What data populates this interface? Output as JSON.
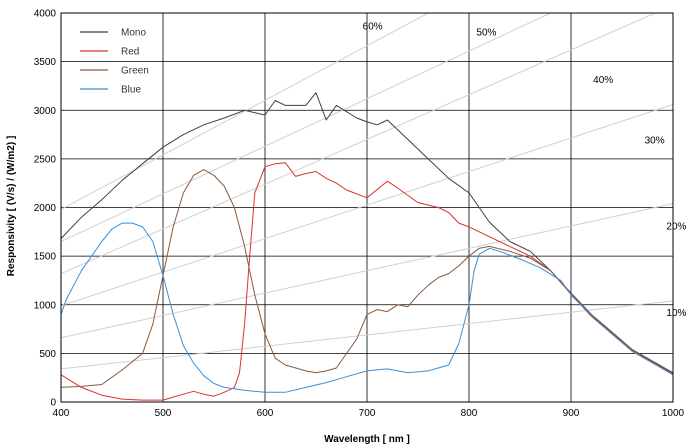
{
  "chart_data": {
    "type": "line",
    "title": "",
    "xlabel": "Wavelength  [ nm ]",
    "ylabel": "Responsivity  [ (V/s) / (W/m2) ]",
    "xlim": [
      400,
      1000
    ],
    "ylim": [
      0,
      4000
    ],
    "x_ticks": [
      "400",
      "500",
      "600",
      "700",
      "800",
      "900",
      "1000"
    ],
    "y_ticks": [
      "0",
      "500",
      "1000",
      "1500",
      "2000",
      "2500",
      "3000",
      "3500",
      "4000"
    ],
    "grid": true,
    "legend_position": "top-left",
    "series": [
      {
        "name": "Mono",
        "color": "#404040",
        "points": [
          [
            400,
            1680
          ],
          [
            420,
            1900
          ],
          [
            440,
            2080
          ],
          [
            460,
            2280
          ],
          [
            480,
            2450
          ],
          [
            500,
            2620
          ],
          [
            520,
            2750
          ],
          [
            540,
            2850
          ],
          [
            560,
            2920
          ],
          [
            580,
            3000
          ],
          [
            600,
            2950
          ],
          [
            610,
            3100
          ],
          [
            620,
            3050
          ],
          [
            640,
            3050
          ],
          [
            650,
            3180
          ],
          [
            660,
            2900
          ],
          [
            670,
            3050
          ],
          [
            690,
            2920
          ],
          [
            700,
            2880
          ],
          [
            710,
            2850
          ],
          [
            720,
            2900
          ],
          [
            740,
            2700
          ],
          [
            760,
            2500
          ],
          [
            780,
            2300
          ],
          [
            800,
            2150
          ],
          [
            820,
            1850
          ],
          [
            840,
            1650
          ],
          [
            860,
            1550
          ],
          [
            880,
            1350
          ],
          [
            900,
            1120
          ],
          [
            920,
            900
          ],
          [
            940,
            720
          ],
          [
            960,
            540
          ],
          [
            980,
            420
          ],
          [
            1000,
            300
          ]
        ]
      },
      {
        "name": "Red",
        "color": "#e03030",
        "points": [
          [
            400,
            280
          ],
          [
            420,
            150
          ],
          [
            440,
            70
          ],
          [
            460,
            30
          ],
          [
            480,
            20
          ],
          [
            500,
            20
          ],
          [
            510,
            50
          ],
          [
            520,
            80
          ],
          [
            530,
            110
          ],
          [
            540,
            80
          ],
          [
            550,
            60
          ],
          [
            560,
            100
          ],
          [
            570,
            150
          ],
          [
            575,
            300
          ],
          [
            580,
            800
          ],
          [
            585,
            1500
          ],
          [
            590,
            2150
          ],
          [
            600,
            2420
          ],
          [
            610,
            2450
          ],
          [
            620,
            2460
          ],
          [
            630,
            2320
          ],
          [
            640,
            2350
          ],
          [
            650,
            2370
          ],
          [
            660,
            2300
          ],
          [
            670,
            2250
          ],
          [
            680,
            2180
          ],
          [
            700,
            2100
          ],
          [
            720,
            2270
          ],
          [
            730,
            2200
          ],
          [
            750,
            2050
          ],
          [
            770,
            2000
          ],
          [
            780,
            1950
          ],
          [
            790,
            1840
          ],
          [
            800,
            1800
          ],
          [
            820,
            1700
          ],
          [
            840,
            1600
          ],
          [
            860,
            1500
          ],
          [
            880,
            1350
          ],
          [
            900,
            1110
          ],
          [
            920,
            880
          ],
          [
            940,
            700
          ],
          [
            960,
            530
          ],
          [
            980,
            410
          ],
          [
            1000,
            290
          ]
        ]
      },
      {
        "name": "Green",
        "color": "#8b5a3c",
        "points": [
          [
            400,
            150
          ],
          [
            420,
            160
          ],
          [
            440,
            180
          ],
          [
            460,
            330
          ],
          [
            480,
            500
          ],
          [
            490,
            800
          ],
          [
            500,
            1300
          ],
          [
            510,
            1800
          ],
          [
            520,
            2150
          ],
          [
            530,
            2330
          ],
          [
            540,
            2390
          ],
          [
            550,
            2330
          ],
          [
            560,
            2220
          ],
          [
            570,
            2000
          ],
          [
            580,
            1600
          ],
          [
            590,
            1100
          ],
          [
            600,
            700
          ],
          [
            610,
            450
          ],
          [
            620,
            380
          ],
          [
            640,
            320
          ],
          [
            650,
            300
          ],
          [
            660,
            320
          ],
          [
            670,
            350
          ],
          [
            680,
            500
          ],
          [
            690,
            650
          ],
          [
            700,
            900
          ],
          [
            710,
            950
          ],
          [
            720,
            930
          ],
          [
            730,
            1000
          ],
          [
            740,
            980
          ],
          [
            750,
            1100
          ],
          [
            760,
            1200
          ],
          [
            770,
            1280
          ],
          [
            780,
            1320
          ],
          [
            790,
            1400
          ],
          [
            800,
            1500
          ],
          [
            810,
            1580
          ],
          [
            820,
            1600
          ],
          [
            840,
            1550
          ],
          [
            860,
            1480
          ],
          [
            880,
            1350
          ],
          [
            900,
            1110
          ],
          [
            920,
            890
          ],
          [
            940,
            710
          ],
          [
            960,
            540
          ],
          [
            980,
            410
          ],
          [
            1000,
            290
          ]
        ]
      },
      {
        "name": "Blue",
        "color": "#3a8fd8",
        "points": [
          [
            400,
            900
          ],
          [
            405,
            1050
          ],
          [
            420,
            1350
          ],
          [
            440,
            1650
          ],
          [
            450,
            1780
          ],
          [
            460,
            1840
          ],
          [
            470,
            1840
          ],
          [
            480,
            1800
          ],
          [
            490,
            1650
          ],
          [
            500,
            1300
          ],
          [
            510,
            900
          ],
          [
            520,
            580
          ],
          [
            530,
            400
          ],
          [
            540,
            270
          ],
          [
            550,
            190
          ],
          [
            560,
            150
          ],
          [
            580,
            120
          ],
          [
            600,
            100
          ],
          [
            620,
            100
          ],
          [
            640,
            150
          ],
          [
            660,
            200
          ],
          [
            680,
            260
          ],
          [
            700,
            320
          ],
          [
            720,
            340
          ],
          [
            740,
            300
          ],
          [
            760,
            320
          ],
          [
            780,
            380
          ],
          [
            790,
            600
          ],
          [
            800,
            1000
          ],
          [
            805,
            1350
          ],
          [
            810,
            1520
          ],
          [
            820,
            1580
          ],
          [
            830,
            1550
          ],
          [
            850,
            1470
          ],
          [
            870,
            1380
          ],
          [
            890,
            1250
          ],
          [
            900,
            1100
          ],
          [
            920,
            890
          ],
          [
            940,
            700
          ],
          [
            960,
            520
          ],
          [
            980,
            400
          ],
          [
            1000,
            280
          ]
        ]
      }
    ],
    "efficiency_lines": [
      {
        "label": "10%",
        "x0": 400,
        "y0": 340,
        "x1": 1000,
        "y1": 1040,
        "label_x": 1022,
        "label_y": 885
      },
      {
        "label": "20%",
        "x0": 400,
        "y0": 660,
        "x1": 1000,
        "y1": 2040,
        "label_x": 1022,
        "label_y": 1775
      },
      {
        "label": "30%",
        "x0": 400,
        "y0": 990,
        "x1": 1000,
        "y1": 3060,
        "label_x": 1000,
        "label_y": 2660
      },
      {
        "label": "40%",
        "x0": 400,
        "y0": 1320,
        "x1": 1000,
        "y1": 4080,
        "label_x": 948,
        "label_y": 3280
      },
      {
        "label": "50%",
        "x0": 400,
        "y0": 1650,
        "x1": 880,
        "y1": 4000,
        "label_x": 830,
        "label_y": 3770
      },
      {
        "label": "60%",
        "x0": 400,
        "y0": 1980,
        "x1": 760,
        "y1": 4000,
        "label_x": 715,
        "label_y": 3830
      }
    ]
  }
}
